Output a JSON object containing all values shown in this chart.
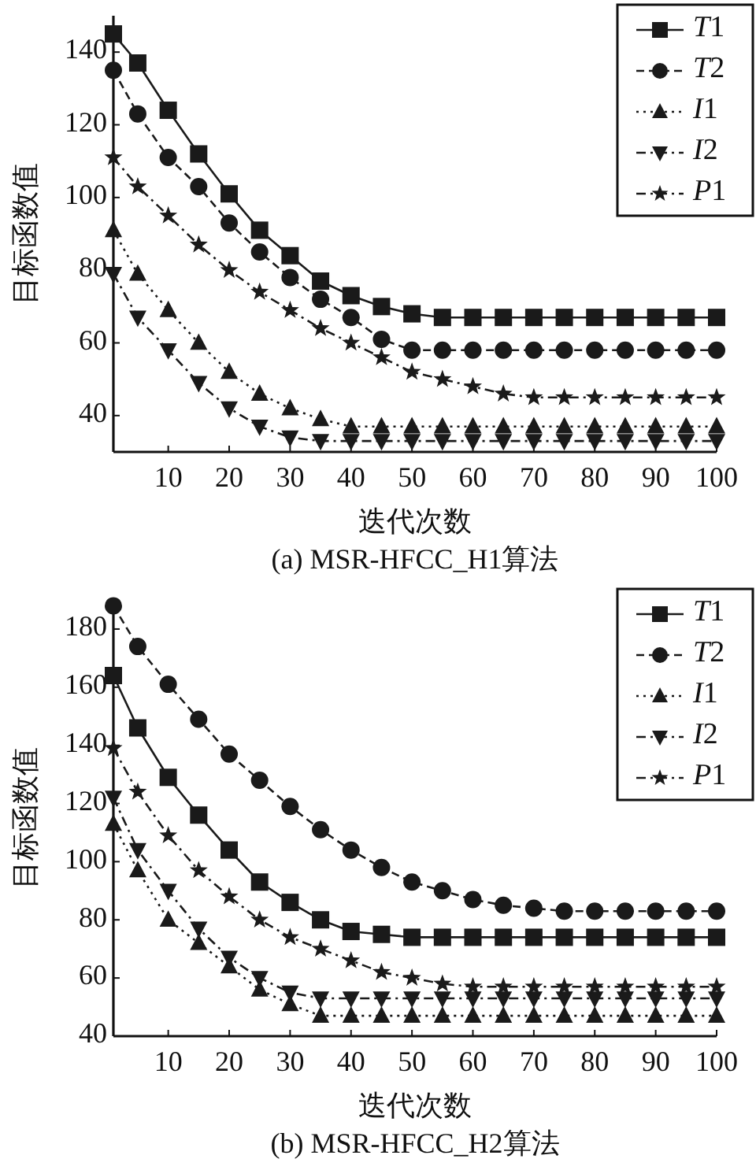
{
  "chart_data": [
    {
      "type": "line",
      "title": "(a) MSR-HFCC_H1算法",
      "xlabel": "迭代次数",
      "ylabel": "目标函数值",
      "legend": "top right",
      "x": [
        1,
        5,
        10,
        15,
        20,
        25,
        30,
        35,
        40,
        45,
        50,
        55,
        60,
        65,
        70,
        75,
        80,
        85,
        90,
        95,
        100
      ],
      "xlim": [
        1,
        100
      ],
      "xticks": [
        10,
        20,
        30,
        40,
        50,
        60,
        70,
        80,
        90,
        100
      ],
      "ylim": [
        30,
        150
      ],
      "yticks": [
        40,
        60,
        80,
        100,
        120,
        140
      ],
      "series": [
        {
          "name": "T1",
          "color": "#1a1a1a",
          "marker": "square",
          "line_style": "solid",
          "values": [
            145,
            137,
            124,
            112,
            101,
            91,
            84,
            77,
            73,
            70,
            68,
            67,
            67,
            67,
            67,
            67,
            67,
            67,
            67,
            67,
            67
          ]
        },
        {
          "name": "T2",
          "color": "#1a1a1a",
          "marker": "circle",
          "line_style": "dashed",
          "values": [
            135,
            123,
            111,
            103,
            93,
            85,
            78,
            72,
            67,
            61,
            58,
            58,
            58,
            58,
            58,
            58,
            58,
            58,
            58,
            58,
            58
          ]
        },
        {
          "name": "I1",
          "color": "#1a1a1a",
          "marker": "triangle",
          "line_style": "dotted",
          "values": [
            91,
            79,
            69,
            60,
            52,
            46,
            42,
            39,
            37,
            37,
            37,
            37,
            37,
            37,
            37,
            37,
            37,
            37,
            37,
            37,
            37
          ]
        },
        {
          "name": "I2",
          "color": "#1a1a1a",
          "marker": "triangle-down",
          "line_style": "dashdot",
          "values": [
            79,
            67,
            58,
            49,
            42,
            37,
            34,
            33,
            33,
            33,
            33,
            33,
            33,
            33,
            33,
            33,
            33,
            33,
            33,
            33,
            33
          ]
        },
        {
          "name": "P1",
          "color": "#1a1a1a",
          "marker": "star",
          "line_style": "dashdot",
          "values": [
            111,
            103,
            95,
            87,
            80,
            74,
            69,
            64,
            60,
            56,
            52,
            50,
            48,
            46,
            45,
            45,
            45,
            45,
            45,
            45,
            45
          ]
        }
      ]
    },
    {
      "type": "line",
      "title": "(b) MSR-HFCC_H2算法",
      "xlabel": "迭代次数",
      "ylabel": "目标函数值",
      "legend": "top right",
      "x": [
        1,
        5,
        10,
        15,
        20,
        25,
        30,
        35,
        40,
        45,
        50,
        55,
        60,
        65,
        70,
        75,
        80,
        85,
        90,
        95,
        100
      ],
      "xlim": [
        1,
        100
      ],
      "xticks": [
        10,
        20,
        30,
        40,
        50,
        60,
        70,
        80,
        90,
        100
      ],
      "ylim": [
        40,
        190
      ],
      "yticks": [
        40,
        60,
        80,
        100,
        120,
        140,
        160,
        180
      ],
      "series": [
        {
          "name": "T1",
          "color": "#1a1a1a",
          "marker": "square",
          "line_style": "solid",
          "values": [
            164,
            146,
            129,
            116,
            104,
            93,
            86,
            80,
            76,
            75,
            74,
            74,
            74,
            74,
            74,
            74,
            74,
            74,
            74,
            74,
            74
          ]
        },
        {
          "name": "T2",
          "color": "#1a1a1a",
          "marker": "circle",
          "line_style": "dashed",
          "values": [
            188,
            174,
            161,
            149,
            137,
            128,
            119,
            111,
            104,
            98,
            93,
            90,
            87,
            85,
            84,
            83,
            83,
            83,
            83,
            83,
            83
          ]
        },
        {
          "name": "I1",
          "color": "#1a1a1a",
          "marker": "triangle",
          "line_style": "dotted",
          "values": [
            113,
            97,
            80,
            72,
            64,
            56,
            51,
            47,
            47,
            47,
            47,
            47,
            47,
            47,
            47,
            47,
            47,
            47,
            47,
            47,
            47
          ]
        },
        {
          "name": "I2",
          "color": "#1a1a1a",
          "marker": "triangle-down",
          "line_style": "dashdot",
          "values": [
            122,
            104,
            90,
            77,
            67,
            60,
            55,
            53,
            53,
            53,
            53,
            53,
            53,
            53,
            53,
            53,
            53,
            53,
            53,
            53,
            53
          ]
        },
        {
          "name": "P1",
          "color": "#1a1a1a",
          "marker": "star",
          "line_style": "dashdot",
          "values": [
            139,
            124,
            109,
            97,
            88,
            80,
            74,
            70,
            66,
            62,
            60,
            58,
            57,
            57,
            57,
            57,
            57,
            57,
            57,
            57,
            57
          ]
        }
      ]
    }
  ]
}
